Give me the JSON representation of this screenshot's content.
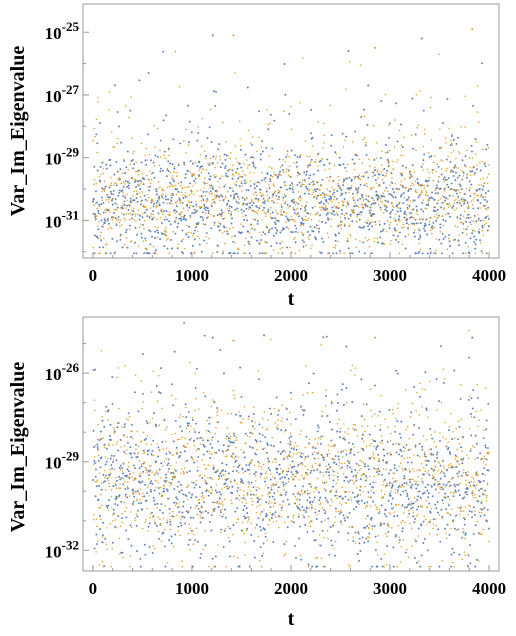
{
  "chart_data": [
    {
      "type": "scatter",
      "xlabel": "t",
      "ylabel": "Var_Im_Eigenvalue",
      "xlim": [
        -100,
        4100
      ],
      "ylim_log10": [
        -32.2,
        -24.1
      ],
      "y_scale": "log",
      "x_ticks": [
        "0",
        "1000",
        "2000",
        "3000",
        "4000"
      ],
      "y_ticks": [
        {
          "base": "10",
          "exp": "-25"
        },
        {
          "base": "10",
          "exp": "-27"
        },
        {
          "base": "10",
          "exp": "-29"
        },
        {
          "base": "10",
          "exp": "-31"
        }
      ],
      "series_colors": [
        "#5e81b5",
        "#e19c24"
      ],
      "points_per_series": 1300,
      "typical_log10_range": [
        -31.6,
        -29.2
      ],
      "outliers": [
        {
          "x": 1210,
          "y_log10": -25.1
        },
        {
          "x": 1420,
          "y_log10": -25.1
        },
        {
          "x": 2580,
          "y_log10": -25.6
        },
        {
          "x": 2850,
          "y_log10": -25.5
        },
        {
          "x": 3320,
          "y_log10": -25.2
        },
        {
          "x": 3830,
          "y_log10": -24.9
        },
        {
          "x": 2780,
          "y_log10": -26.7
        }
      ],
      "grid": false,
      "legend": "none"
    },
    {
      "type": "scatter",
      "xlabel": "t",
      "ylabel": "Var_Im_Eigenvalue",
      "xlim": [
        -100,
        4100
      ],
      "ylim_log10": [
        -32.7,
        -24.1
      ],
      "y_scale": "log",
      "x_ticks": [
        "0",
        "1000",
        "2000",
        "3000",
        "4000"
      ],
      "y_ticks": [
        {
          "base": "10",
          "exp": "-26"
        },
        {
          "base": "10",
          "exp": "-29"
        },
        {
          "base": "10",
          "exp": "-32"
        }
      ],
      "series_colors": [
        "#5e81b5",
        "#e19c24"
      ],
      "points_per_series": 1300,
      "typical_log10_range": [
        -31.5,
        -28.0
      ],
      "outliers": [
        {
          "x": 1210,
          "y_log10": -24.8
        },
        {
          "x": 1420,
          "y_log10": -24.9
        },
        {
          "x": 2560,
          "y_log10": -25.1
        },
        {
          "x": 2850,
          "y_log10": -24.8
        },
        {
          "x": 3830,
          "y_log10": -24.8
        }
      ],
      "grid": false,
      "legend": "none"
    }
  ]
}
